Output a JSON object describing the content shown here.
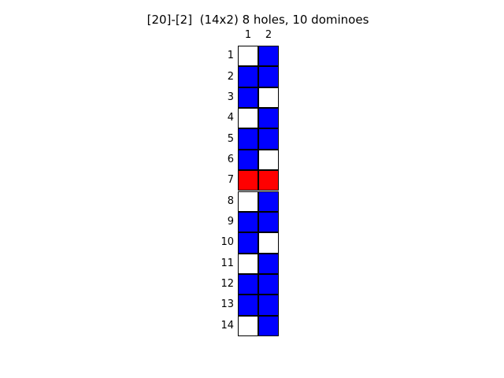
{
  "title": "[20]-[2]  (14x2) 8 holes, 10 dominoes",
  "column_labels": [
    "1",
    "2"
  ],
  "row_labels": [
    "1",
    "2",
    "3",
    "4",
    "5",
    "6",
    "7",
    "8",
    "9",
    "10",
    "11",
    "12",
    "13",
    "14"
  ],
  "colors": {
    "hole": "#ffffff",
    "domino": "#0000ff",
    "highlight": "#ff0000",
    "grid_line": "#000000"
  },
  "board": {
    "rows": 14,
    "cols": 2,
    "cells": [
      [
        "hole",
        "domino"
      ],
      [
        "domino",
        "domino"
      ],
      [
        "domino",
        "hole"
      ],
      [
        "hole",
        "domino"
      ],
      [
        "domino",
        "domino"
      ],
      [
        "domino",
        "hole"
      ],
      [
        "highlight",
        "highlight"
      ],
      [
        "hole",
        "domino"
      ],
      [
        "domino",
        "domino"
      ],
      [
        "domino",
        "hole"
      ],
      [
        "hole",
        "domino"
      ],
      [
        "domino",
        "domino"
      ],
      [
        "domino",
        "domino"
      ],
      [
        "hole",
        "domino"
      ]
    ]
  }
}
